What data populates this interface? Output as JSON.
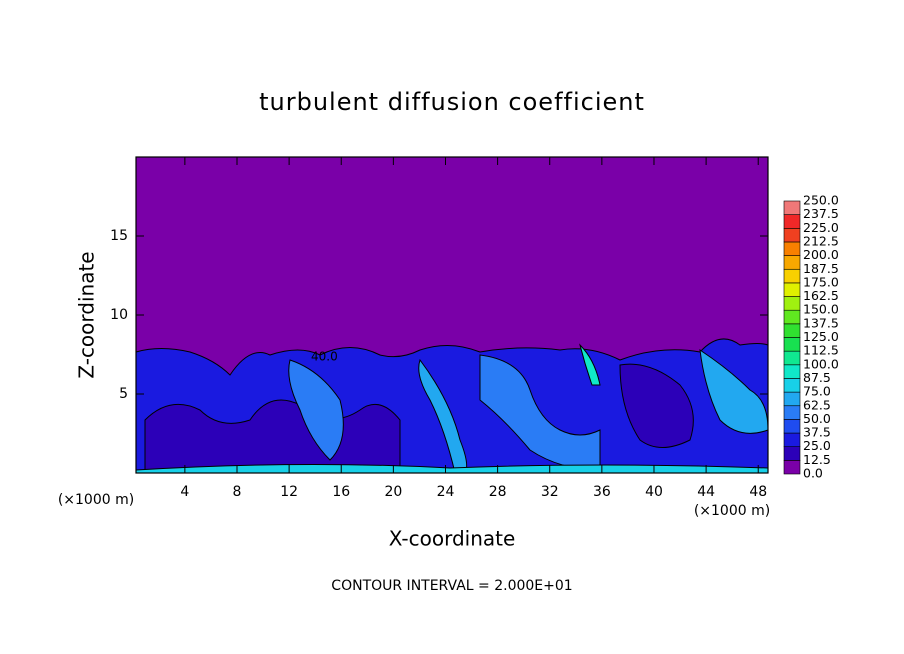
{
  "chart_data": {
    "type": "contour",
    "title": "turbulent diffusion coefficient",
    "x_label": "X-coordinate",
    "y_label": "Z-coordinate",
    "x_unit_label": "(×1000 m)",
    "y_unit_label": "(×1000 m)",
    "footnote": "CONTOUR INTERVAL = 2.000E+01",
    "annotation": "40.0",
    "xlim": [
      0.25,
      48.75
    ],
    "xticks": [
      4,
      8,
      12,
      16,
      20,
      24,
      28,
      32,
      36,
      40,
      44,
      48
    ],
    "ylim": [
      0,
      20
    ],
    "yticks": [
      5,
      10,
      15
    ],
    "levels": [
      {
        "value": 0,
        "label": "0.0"
      },
      {
        "value": 12.5,
        "label": "12.5"
      },
      {
        "value": 25,
        "label": "25.0"
      },
      {
        "value": 37.5,
        "label": "37.5"
      },
      {
        "value": 50,
        "label": "50.0"
      },
      {
        "value": 62.5,
        "label": "62.5"
      },
      {
        "value": 75,
        "label": "75.0"
      },
      {
        "value": 87.5,
        "label": "87.5"
      },
      {
        "value": 100,
        "label": "100.0"
      },
      {
        "value": 112.5,
        "label": "112.5"
      },
      {
        "value": 125,
        "label": "125.0"
      },
      {
        "value": 137.5,
        "label": "137.5"
      },
      {
        "value": 150,
        "label": "150.0"
      },
      {
        "value": 162.5,
        "label": "162.5"
      },
      {
        "value": 175,
        "label": "175.0"
      },
      {
        "value": 187.5,
        "label": "187.5"
      },
      {
        "value": 200,
        "label": "200.0"
      },
      {
        "value": 212.5,
        "label": "212.5"
      },
      {
        "value": 225,
        "label": "225.0"
      },
      {
        "value": 237.5,
        "label": "237.5"
      },
      {
        "value": 250,
        "label": "250.0"
      }
    ],
    "colors": [
      "#7a00a8",
      "#2c00b8",
      "#1a1ae0",
      "#1f4cf0",
      "#2a7cf5",
      "#22a8f0",
      "#18d0e8",
      "#10e8c8",
      "#10e890",
      "#18e050",
      "#30e030",
      "#60e820",
      "#a0f010",
      "#e0f000",
      "#f8d000",
      "#f8a800",
      "#f88000",
      "#f04020",
      "#f02828",
      "#f07878"
    ]
  }
}
